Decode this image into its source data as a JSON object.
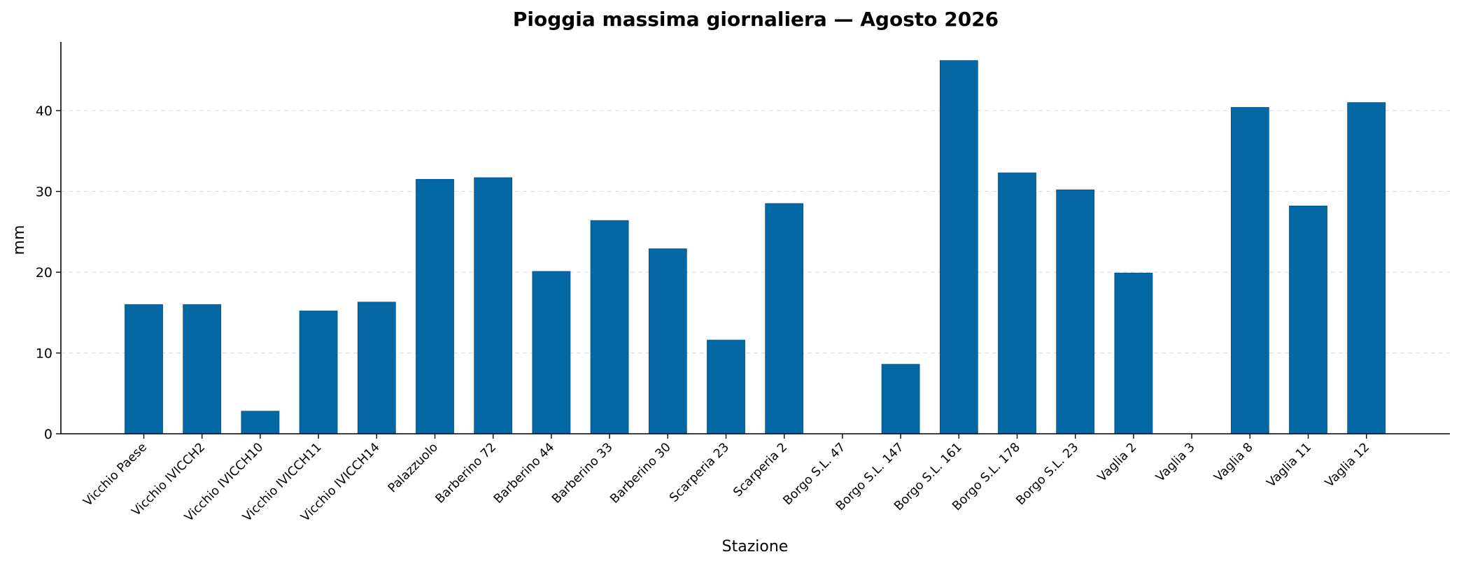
{
  "chart_data": {
    "type": "bar",
    "title": "Pioggia massima giornaliera — Agosto 2026",
    "xlabel": "Stazione",
    "ylabel": "mm",
    "ylim": [
      0,
      48.5
    ],
    "yticks": [
      0,
      10,
      20,
      30,
      40
    ],
    "grid": "y-dashed",
    "bar_color": "#0468a5",
    "categories": [
      "Vicchio Paese",
      "Vicchio IVICCH2",
      "Vicchio IVICCH10",
      "Vicchio IVICCH11",
      "Vicchio IVICCH14",
      "Palazzuolo",
      "Barberino 72",
      "Barberino 44",
      "Barberino 33",
      "Barberino 30",
      "Scarperia 23",
      "Scarperia 2",
      "Borgo S.L. 47",
      "Borgo S.L. 147",
      "Borgo S.L. 161",
      "Borgo S.L. 178",
      "Borgo S.L. 23",
      "Vaglia 2",
      "Vaglia 3",
      "Vaglia 8",
      "Vaglia 11",
      "Vaglia 12"
    ],
    "values": [
      16.0,
      16.0,
      2.8,
      15.2,
      16.3,
      31.5,
      31.7,
      20.1,
      26.4,
      22.9,
      11.6,
      28.5,
      0.0,
      8.6,
      46.2,
      32.3,
      30.2,
      19.9,
      0.0,
      40.4,
      28.2,
      41.0
    ]
  }
}
